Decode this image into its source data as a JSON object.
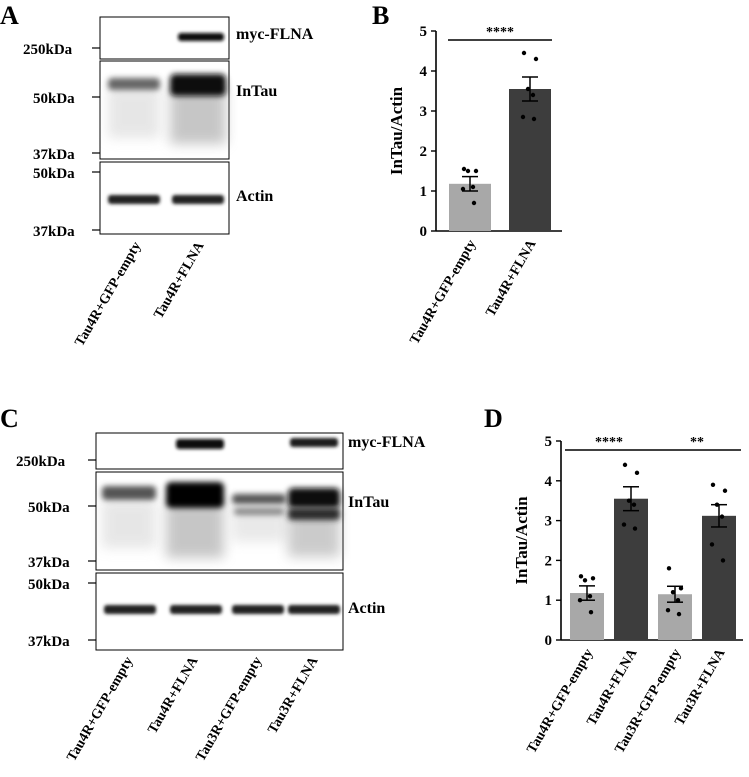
{
  "panels": [
    {
      "letter": "A",
      "blots": [
        {
          "label": "myc-FLNA",
          "markers": [
            "250kDa"
          ]
        },
        {
          "label": "InTau",
          "markers": [
            "50kDa",
            "37kDa"
          ]
        },
        {
          "label": "Actin",
          "markers": [
            "50kDa",
            "37kDa"
          ]
        }
      ],
      "lanes": [
        "Tau4R+GFP-empty",
        "Tau4R+FLNA"
      ]
    },
    {
      "letter": "C",
      "blots": [
        {
          "label": "myc-FLNA",
          "markers": [
            "250kDa"
          ]
        },
        {
          "label": "InTau",
          "markers": [
            "50kDa",
            "37kDa"
          ]
        },
        {
          "label": "Actin",
          "markers": [
            "50kDa",
            "37kDa"
          ]
        }
      ],
      "lanes": [
        "Tau4R+GFP-empty",
        "Tau4R+FLNA",
        "Tau3R+GFP-empty",
        "Tau3R+FLNA"
      ]
    }
  ],
  "chart_data": [
    {
      "panel": "B",
      "type": "bar",
      "ylabel": "InTau/Actin",
      "ylim": [
        0,
        5
      ],
      "yticks": [
        "0",
        "1",
        "2",
        "3",
        "4",
        "5"
      ],
      "categories": [
        "Tau4R+GFP-empty",
        "Tau4R+FLNA"
      ],
      "values": [
        1.18,
        3.55
      ],
      "errors": [
        0.18,
        0.3
      ],
      "colors": [
        "#a8a8a8",
        "#3d3d3d"
      ],
      "points": [
        [
          1.55,
          1.5,
          1.5,
          1.1,
          1.05,
          0.7
        ],
        [
          4.45,
          4.3,
          3.55,
          3.4,
          2.85,
          2.8
        ]
      ],
      "annotations": [
        {
          "text": "****",
          "from": 0,
          "to": 1
        }
      ]
    },
    {
      "panel": "D",
      "type": "bar",
      "ylabel": "InTau/Actin",
      "ylim": [
        0,
        5
      ],
      "yticks": [
        "0",
        "1",
        "2",
        "3",
        "4",
        "5"
      ],
      "categories": [
        "Tau4R+GFP-empty",
        "Tau4R+FLNA",
        "Tau3R+GFP-empty",
        "Tau3R+FLNA"
      ],
      "values": [
        1.18,
        3.55,
        1.15,
        3.12
      ],
      "errors": [
        0.18,
        0.3,
        0.2,
        0.28
      ],
      "colors": [
        "#a8a8a8",
        "#3d3d3d",
        "#a8a8a8",
        "#3d3d3d"
      ],
      "points": [
        [
          1.6,
          1.55,
          1.5,
          1.1,
          1.0,
          0.7
        ],
        [
          4.4,
          4.2,
          3.5,
          3.4,
          2.9,
          2.8
        ],
        [
          1.8,
          1.3,
          1.2,
          1.0,
          0.75,
          0.65
        ],
        [
          3.9,
          3.75,
          3.4,
          3.1,
          2.4,
          2.0
        ]
      ],
      "annotations": [
        {
          "text": "****",
          "from": 0,
          "to": 1
        },
        {
          "text": "**",
          "from": 2,
          "to": 3
        }
      ]
    }
  ]
}
